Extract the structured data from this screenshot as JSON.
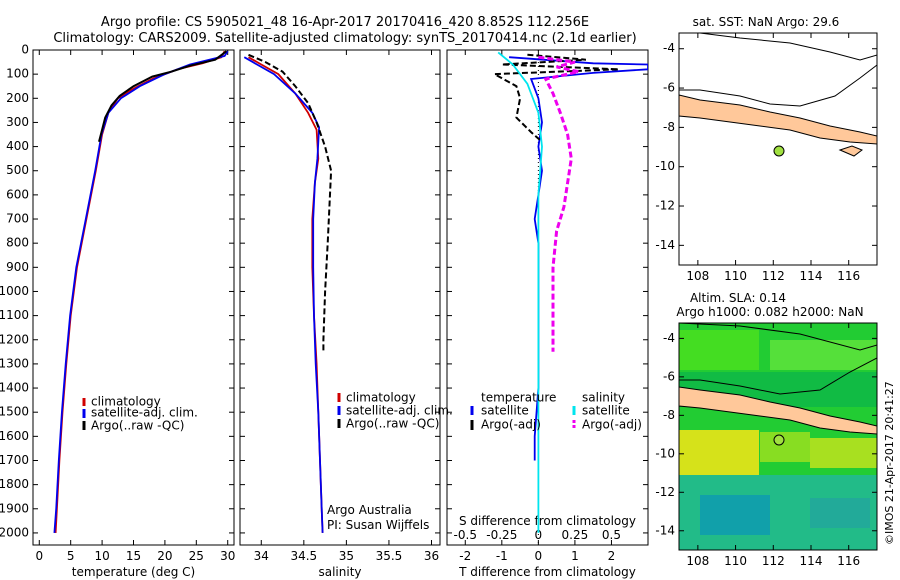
{
  "header": {
    "line1": "Argo profile: CS 5905021_48 16-Apr-2017 20170416_420 8.852S 112.256E",
    "line2": "Climatology: CARS2009. Satellite-adjusted climatology: synTS_20170414.nc (2.1d earlier)"
  },
  "colors": {
    "climatology": "#d00000",
    "satellite": "#0000ee",
    "argo": "#000000",
    "sat_salinity": "#00e5ee",
    "argo_salinity": "#ee00ee",
    "land": "#ffc89a",
    "argo_marker": "#a0e040"
  },
  "chart_data": [
    {
      "type": "line",
      "id": "temperature",
      "xlabel": "temperature (deg C)",
      "ylabel": "",
      "xlim": [
        -1,
        31
      ],
      "ylim": [
        2050,
        0
      ],
      "xticks": [
        0,
        5,
        10,
        15,
        20,
        25,
        30
      ],
      "yticks": [
        0,
        100,
        200,
        300,
        400,
        500,
        600,
        700,
        800,
        900,
        1000,
        1100,
        1200,
        1300,
        1400,
        1500,
        1600,
        1700,
        1800,
        1900,
        2000
      ],
      "legend": [
        "climatology",
        "satellite-adj. clim.",
        "Argo(..raw -QC)"
      ],
      "series": [
        {
          "name": "climatology",
          "color": "#d00000",
          "points": [
            [
              29.5,
              5
            ],
            [
              29,
              30
            ],
            [
              26,
              55
            ],
            [
              22,
              80
            ],
            [
              18,
              120
            ],
            [
              15,
              160
            ],
            [
              12.5,
              200
            ],
            [
              11,
              260
            ],
            [
              10,
              350
            ],
            [
              9,
              500
            ],
            [
              7.5,
              700
            ],
            [
              6,
              900
            ],
            [
              5,
              1100
            ],
            [
              4.3,
              1300
            ],
            [
              3.7,
              1500
            ],
            [
              3.2,
              1700
            ],
            [
              2.8,
              1900
            ],
            [
              2.6,
              2000
            ]
          ]
        },
        {
          "name": "satellite-adj. clim.",
          "color": "#0000ee",
          "points": [
            [
              30,
              5
            ],
            [
              29.5,
              25
            ],
            [
              24,
              60
            ],
            [
              20,
              100
            ],
            [
              16,
              150
            ],
            [
              13,
              200
            ],
            [
              11,
              260
            ],
            [
              9.9,
              350
            ],
            [
              8.9,
              500
            ],
            [
              7.4,
              700
            ],
            [
              5.9,
              900
            ],
            [
              4.9,
              1100
            ],
            [
              4.2,
              1300
            ],
            [
              3.6,
              1500
            ],
            [
              3.1,
              1700
            ],
            [
              2.7,
              1900
            ],
            [
              2.4,
              2000
            ]
          ]
        },
        {
          "name": "Argo(..raw -QC)",
          "color": "#000000",
          "points": [
            [
              29.8,
              5
            ],
            [
              28,
              40
            ],
            [
              24,
              65
            ],
            [
              21,
              90
            ],
            [
              18,
              110
            ],
            [
              15,
              150
            ],
            [
              12.8,
              190
            ],
            [
              11.5,
              230
            ],
            [
              10.5,
              280
            ],
            [
              10,
              330
            ],
            [
              9.5,
              380
            ]
          ]
        }
      ]
    },
    {
      "type": "line",
      "id": "salinity",
      "xlabel": "salinity",
      "ylabel": "",
      "xlim": [
        33.75,
        36.1
      ],
      "ylim": [
        2050,
        0
      ],
      "xticks": [
        34,
        34.5,
        35,
        35.5,
        36
      ],
      "legend": [
        "climatology",
        "satellite-adj. clim.",
        "Argo(..raw -QC)"
      ],
      "annotation": [
        "Argo Australia",
        "PI: Susan Wijffels"
      ],
      "series": [
        {
          "name": "climatology",
          "color": "#d00000",
          "points": [
            [
              33.85,
              30
            ],
            [
              34,
              60
            ],
            [
              34.2,
              100
            ],
            [
              34.4,
              180
            ],
            [
              34.55,
              260
            ],
            [
              34.65,
              330
            ],
            [
              34.67,
              450
            ],
            [
              34.63,
              550
            ],
            [
              34.6,
              700
            ],
            [
              34.6,
              900
            ],
            [
              34.62,
              1100
            ],
            [
              34.65,
              1300
            ],
            [
              34.67,
              1500
            ],
            [
              34.69,
              1700
            ],
            [
              34.71,
              1900
            ],
            [
              34.72,
              2000
            ]
          ]
        },
        {
          "name": "satellite-adj. clim.",
          "color": "#0000ee",
          "points": [
            [
              33.8,
              30
            ],
            [
              33.95,
              60
            ],
            [
              34.15,
              100
            ],
            [
              34.4,
              180
            ],
            [
              34.6,
              260
            ],
            [
              34.68,
              320
            ],
            [
              34.66,
              450
            ],
            [
              34.63,
              550
            ],
            [
              34.61,
              700
            ],
            [
              34.61,
              900
            ],
            [
              34.62,
              1100
            ],
            [
              34.64,
              1300
            ],
            [
              34.67,
              1500
            ],
            [
              34.69,
              1700
            ],
            [
              34.71,
              1900
            ],
            [
              34.72,
              2000
            ]
          ]
        },
        {
          "name": "Argo(..raw -QC)",
          "color": "#000000",
          "points": [
            [
              33.85,
              20
            ],
            [
              34.05,
              50
            ],
            [
              34.25,
              90
            ],
            [
              34.4,
              150
            ],
            [
              34.55,
              220
            ],
            [
              34.65,
              300
            ],
            [
              34.75,
              400
            ],
            [
              34.82,
              500
            ],
            [
              34.8,
              650
            ],
            [
              34.78,
              800
            ],
            [
              34.75,
              1000
            ],
            [
              34.73,
              1200
            ],
            [
              34.73,
              1250
            ]
          ]
        }
      ]
    },
    {
      "type": "line",
      "id": "difference",
      "xlabel": "T difference from climatology",
      "xlabel2": "S difference from climatology",
      "xlim": [
        -2.5,
        3
      ],
      "xticks": [
        -2,
        -1,
        0,
        1,
        2
      ],
      "xticks2": [
        "-0.5",
        "-0.25",
        "0",
        "0.25",
        "0.5"
      ],
      "xticks2_pos": [
        -2,
        -1,
        0,
        1,
        2
      ],
      "ylim": [
        2050,
        0
      ],
      "legend_left_title": "temperature",
      "legend_right_title": "salinity",
      "legend": [
        "satellite",
        "Argo(-adj)",
        "satellite",
        "Argo(-adj)"
      ],
      "series": [
        {
          "name": "satellite",
          "color": "#0000ee",
          "points": [
            [
              -0.8,
              30
            ],
            [
              1.5,
              55
            ],
            [
              3,
              60
            ],
            [
              3,
              80
            ],
            [
              1.5,
              95
            ],
            [
              -0.2,
              120
            ],
            [
              0,
              200
            ],
            [
              0.1,
              300
            ],
            [
              0,
              400
            ],
            [
              0.1,
              500
            ],
            [
              0,
              600
            ],
            [
              -0.1,
              700
            ],
            [
              0,
              800
            ],
            [
              0,
              1000
            ],
            [
              0,
              1200
            ],
            [
              0,
              1400
            ],
            [
              -0.1,
              1600
            ],
            [
              -0.1,
              1700
            ]
          ]
        },
        {
          "name": "Argo(-adj)",
          "color": "#000000",
          "points": [
            [
              -0.3,
              20
            ],
            [
              1.3,
              40
            ],
            [
              -1,
              60
            ],
            [
              2.2,
              80
            ],
            [
              -1.2,
              100
            ],
            [
              -0.6,
              150
            ],
            [
              -0.5,
              200
            ],
            [
              -0.6,
              280
            ],
            [
              -0.2,
              340
            ],
            [
              0.1,
              380
            ]
          ]
        },
        {
          "name": "satellite",
          "color": "#00e5ee",
          "points": [
            [
              -1.1,
              10
            ],
            [
              -0.7,
              60
            ],
            [
              -0.3,
              140
            ],
            [
              0,
              260
            ],
            [
              0.1,
              400
            ],
            [
              0,
              600
            ],
            [
              0,
              800
            ],
            [
              0,
              1000
            ],
            [
              0,
              1200
            ],
            [
              0,
              1500
            ],
            [
              0,
              1800
            ],
            [
              0,
              2000
            ]
          ]
        },
        {
          "name": "Argo(-adj)",
          "color": "#ee00ee",
          "points": [
            [
              0,
              30
            ],
            [
              1,
              50
            ],
            [
              0.5,
              70
            ],
            [
              1.1,
              90
            ],
            [
              0.2,
              120
            ],
            [
              0.4,
              180
            ],
            [
              0.6,
              260
            ],
            [
              0.8,
              350
            ],
            [
              0.9,
              450
            ],
            [
              0.8,
              550
            ],
            [
              0.7,
              650
            ],
            [
              0.5,
              750
            ],
            [
              0.4,
              900
            ],
            [
              0.4,
              1100
            ],
            [
              0.4,
              1250
            ]
          ]
        }
      ]
    }
  ],
  "maps": [
    {
      "id": "sst-map",
      "title": "sat. SST: NaN Argo: 29.6",
      "xticks": [
        "108",
        "110",
        "112",
        "114",
        "116"
      ],
      "yticks": [
        "-4",
        "-6",
        "-8",
        "-10",
        "-12",
        "-14"
      ],
      "argo_lon": 112.256,
      "argo_lat": -8.852
    },
    {
      "id": "sla-map",
      "title_line1": "Altim. SLA: 0.14",
      "title_line2": "Argo h1000: 0.082 h2000: NaN",
      "xticks": [
        "108",
        "110",
        "112",
        "114",
        "116"
      ],
      "yticks": [
        "-4",
        "-6",
        "-8",
        "-10",
        "-12",
        "-14"
      ],
      "argo_lon": 112.256,
      "argo_lat": -8.852
    }
  ],
  "footer": {
    "stamp": "©IMOS 21-Apr-2017 20:41:27"
  }
}
